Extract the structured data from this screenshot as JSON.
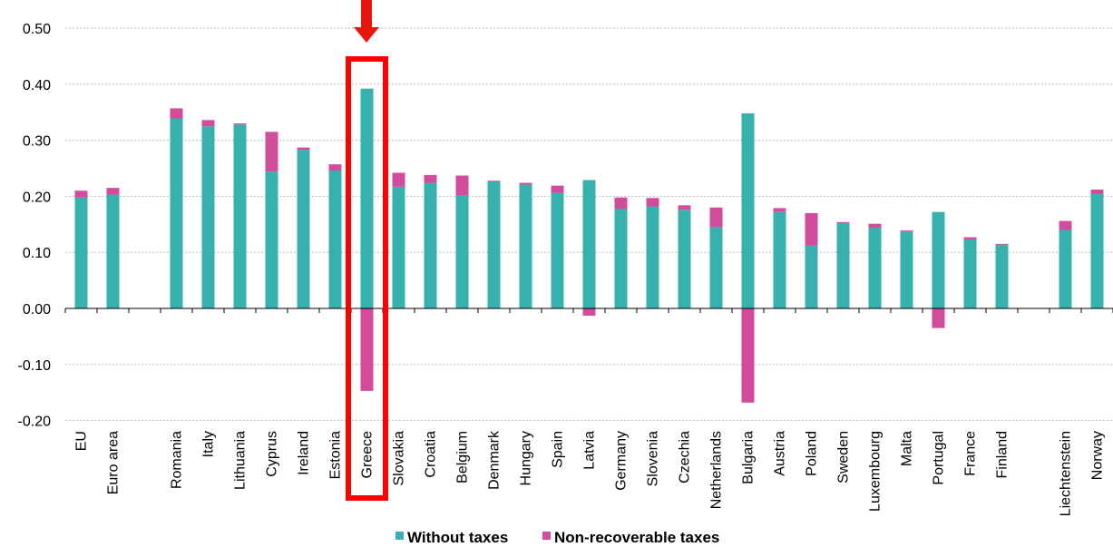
{
  "chart_data": {
    "type": "bar",
    "stacked": true,
    "ylim": [
      -0.2,
      0.5
    ],
    "yticks": [
      "0.50",
      "0.40",
      "0.30",
      "0.20",
      "0.10",
      "0.00",
      "-0.10",
      "-0.20"
    ],
    "grid": true,
    "legend_position": "bottom",
    "highlight": "Greece",
    "categories": [
      "EU",
      "Euro area",
      "",
      "Romania",
      "Italy",
      "Lithuania",
      "Cyprus",
      "Ireland",
      "Estonia",
      "Greece",
      "Slovakia",
      "Croatia",
      "Belgium",
      "Denmark",
      "Hungary",
      "Spain",
      "Latvia",
      "Germany",
      "Slovenia",
      "Czechia",
      "Netherlands",
      "Bulgaria",
      "Austria",
      "Poland",
      "Sweden",
      "Luxembourg",
      "Malta",
      "Portugal",
      "France",
      "Finland",
      "",
      "Liechtenstein",
      "Norway"
    ],
    "series": [
      {
        "name": "Without taxes",
        "color": "#36b1ae",
        "values": [
          0.198,
          0.203,
          null,
          0.339,
          0.325,
          0.328,
          0.244,
          0.283,
          0.246,
          0.392,
          0.217,
          0.224,
          0.201,
          0.227,
          0.221,
          0.206,
          0.229,
          0.178,
          0.182,
          0.176,
          0.145,
          0.348,
          0.172,
          0.112,
          0.152,
          0.144,
          0.137,
          0.172,
          0.123,
          0.113,
          null,
          0.14,
          0.204
        ]
      },
      {
        "name": "Non-recoverable taxes",
        "color": "#d24c9b",
        "values": [
          0.012,
          0.012,
          null,
          0.018,
          0.011,
          0.002,
          0.071,
          0.004,
          0.011,
          -0.147,
          0.025,
          0.014,
          0.036,
          0.001,
          0.003,
          0.013,
          -0.013,
          0.02,
          0.015,
          0.008,
          0.035,
          -0.168,
          0.007,
          0.058,
          0.002,
          0.007,
          0.002,
          -0.035,
          0.004,
          0.002,
          null,
          0.016,
          0.008
        ]
      }
    ]
  }
}
